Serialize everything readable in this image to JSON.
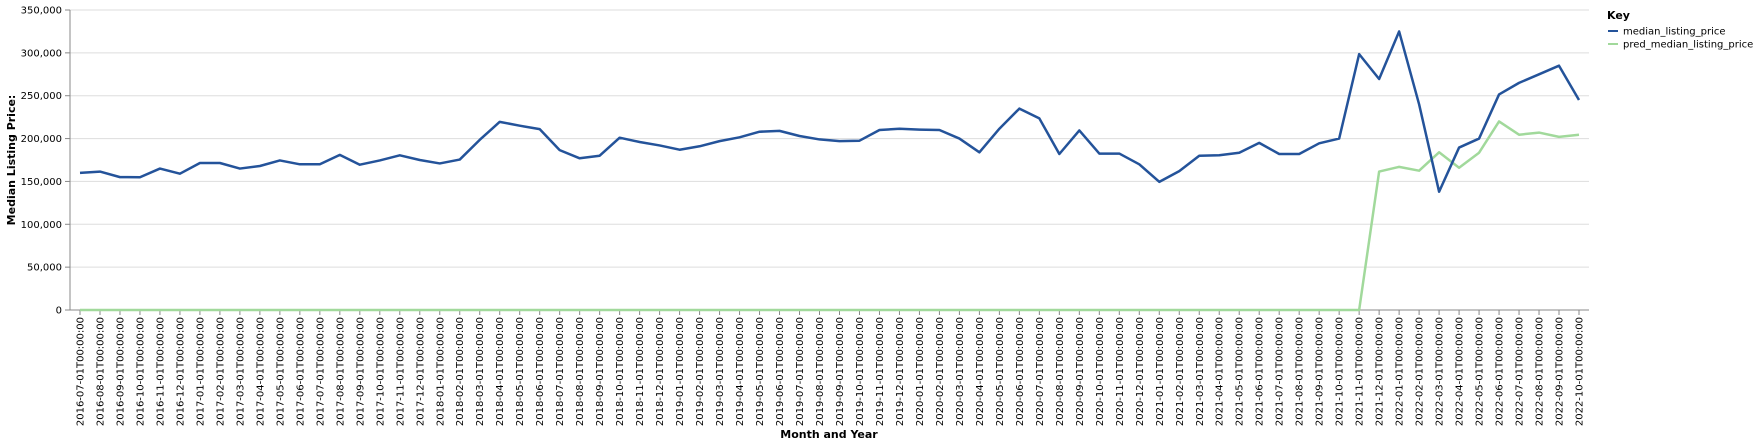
{
  "chart_data": {
    "type": "line",
    "title": "",
    "xlabel": "Month and Year",
    "ylabel": "Median Listing Price:",
    "ylim": [
      0,
      350000
    ],
    "yticks": [
      "0",
      "50,000",
      "100,000",
      "150,000",
      "200,000",
      "250,000",
      "300,000",
      "350,000"
    ],
    "grid": true,
    "legend": {
      "title": "Key",
      "placement": "top-right"
    },
    "x": [
      "2016-07-01T00:00:00",
      "2016-08-01T00:00:00",
      "2016-09-01T00:00:00",
      "2016-10-01T00:00:00",
      "2016-11-01T00:00:00",
      "2016-12-01T00:00:00",
      "2017-01-01T00:00:00",
      "2017-02-01T00:00:00",
      "2017-03-01T00:00:00",
      "2017-04-01T00:00:00",
      "2017-05-01T00:00:00",
      "2017-06-01T00:00:00",
      "2017-07-01T00:00:00",
      "2017-08-01T00:00:00",
      "2017-09-01T00:00:00",
      "2017-10-01T00:00:00",
      "2017-11-01T00:00:00",
      "2017-12-01T00:00:00",
      "2018-01-01T00:00:00",
      "2018-02-01T00:00:00",
      "2018-03-01T00:00:00",
      "2018-04-01T00:00:00",
      "2018-05-01T00:00:00",
      "2018-06-01T00:00:00",
      "2018-07-01T00:00:00",
      "2018-08-01T00:00:00",
      "2018-09-01T00:00:00",
      "2018-10-01T00:00:00",
      "2018-11-01T00:00:00",
      "2018-12-01T00:00:00",
      "2019-01-01T00:00:00",
      "2019-02-01T00:00:00",
      "2019-03-01T00:00:00",
      "2019-04-01T00:00:00",
      "2019-05-01T00:00:00",
      "2019-06-01T00:00:00",
      "2019-07-01T00:00:00",
      "2019-08-01T00:00:00",
      "2019-09-01T00:00:00",
      "2019-10-01T00:00:00",
      "2019-11-01T00:00:00",
      "2019-12-01T00:00:00",
      "2020-01-01T00:00:00",
      "2020-02-01T00:00:00",
      "2020-03-01T00:00:00",
      "2020-04-01T00:00:00",
      "2020-05-01T00:00:00",
      "2020-06-01T00:00:00",
      "2020-07-01T00:00:00",
      "2020-08-01T00:00:00",
      "2020-09-01T00:00:00",
      "2020-10-01T00:00:00",
      "2020-11-01T00:00:00",
      "2020-12-01T00:00:00",
      "2021-01-01T00:00:00",
      "2021-02-01T00:00:00",
      "2021-03-01T00:00:00",
      "2021-04-01T00:00:00",
      "2021-05-01T00:00:00",
      "2021-06-01T00:00:00",
      "2021-07-01T00:00:00",
      "2021-08-01T00:00:00",
      "2021-09-01T00:00:00",
      "2021-10-01T00:00:00",
      "2021-11-01T00:00:00",
      "2021-12-01T00:00:00",
      "2022-01-01T00:00:00",
      "2022-02-01T00:00:00",
      "2022-03-01T00:00:00",
      "2022-04-01T00:00:00",
      "2022-05-01T00:00:00",
      "2022-06-01T00:00:00",
      "2022-07-01T00:00:00",
      "2022-08-01T00:00:00",
      "2022-09-01T00:00:00",
      "2022-10-01T00:00:00"
    ],
    "series": [
      {
        "name": "median_listing_price",
        "color": "#24539a",
        "values": [
          160000,
          161500,
          155000,
          154900,
          165000,
          159000,
          171500,
          171500,
          165000,
          168000,
          174500,
          170000,
          170000,
          181000,
          169500,
          174500,
          180500,
          175000,
          171000,
          175500,
          198500,
          219500,
          215000,
          211000,
          186500,
          177000,
          180000,
          201000,
          196000,
          192000,
          187000,
          191000,
          197000,
          201500,
          208000,
          209000,
          203000,
          199000,
          197000,
          197500,
          210000,
          211500,
          210500,
          210000,
          200000,
          184000,
          211500,
          235000,
          223500,
          182000,
          209500,
          182500,
          182500,
          170000,
          149500,
          162000,
          180000,
          180500,
          183500,
          195000,
          182000,
          182000,
          194500,
          200000,
          298500,
          269500,
          325000,
          240000,
          138000,
          189500,
          200000,
          251500,
          265000,
          275000,
          285000,
          245000
        ]
      },
      {
        "name": "pred_median_listing_price",
        "color": "#a1d99b",
        "values": [
          0,
          0,
          0,
          0,
          0,
          0,
          0,
          0,
          0,
          0,
          0,
          0,
          0,
          0,
          0,
          0,
          0,
          0,
          0,
          0,
          0,
          0,
          0,
          0,
          0,
          0,
          0,
          0,
          0,
          0,
          0,
          0,
          0,
          0,
          0,
          0,
          0,
          0,
          0,
          0,
          0,
          0,
          0,
          0,
          0,
          0,
          0,
          0,
          0,
          0,
          0,
          0,
          0,
          0,
          0,
          0,
          0,
          0,
          0,
          0,
          0,
          0,
          0,
          0,
          0,
          161500,
          167000,
          162500,
          184000,
          166000,
          183500,
          220000,
          204500,
          207000,
          202000,
          204500
        ]
      }
    ]
  }
}
